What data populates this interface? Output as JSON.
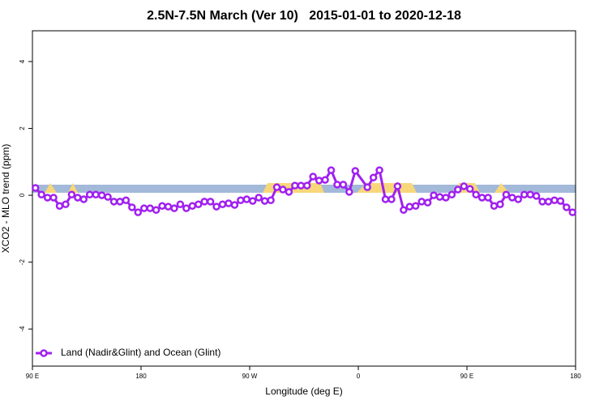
{
  "chart_data": {
    "type": "line",
    "title": "2.5N-7.5N March (Ver 10)   2015-01-01 to 2020-12-18",
    "x_label": "Longitude (deg E)",
    "y_label": "XCO2 - MLO trend (ppm)",
    "xlim": [
      90,
      540
    ],
    "xticks": [
      {
        "value": 90,
        "label": "90 E"
      },
      {
        "value": 180,
        "label": "180"
      },
      {
        "value": 270,
        "label": "90 W"
      },
      {
        "value": 360,
        "label": "0"
      },
      {
        "value": 450,
        "label": "90 E"
      },
      {
        "value": 540,
        "label": "180"
      }
    ],
    "ylim": [
      -5.11,
      4.92
    ],
    "yticks": [
      -4,
      -2,
      0,
      2,
      4
    ],
    "legend": "bottom-left",
    "series": [
      {
        "name": "Land (Nadir&Glint) and Ocean (Glint)",
        "color": "#a020f0",
        "x": [
          92.5,
          97.5,
          102.5,
          107.5,
          112.5,
          117.5,
          122.5,
          127.5,
          132.5,
          137.5,
          142.5,
          147.5,
          152.5,
          157.5,
          162.5,
          167.5,
          172.5,
          177.5,
          182.5,
          187.5,
          192.5,
          197.5,
          202.5,
          207.5,
          212.5,
          217.5,
          222.5,
          227.5,
          232.5,
          237.5,
          242.5,
          247.5,
          252.5,
          257.5,
          262.5,
          267.5,
          272.5,
          277.5,
          282.5,
          287.5,
          292.5,
          297.5,
          302.5,
          307.5,
          312.5,
          317.5,
          322.5,
          327.5,
          332.5,
          337.5,
          342.5,
          347.5,
          352.5,
          357.5,
          367.5,
          372.5,
          377.5,
          382.5,
          387.5,
          392.5,
          397.5,
          402.5,
          407.5,
          412.5,
          417.5,
          422.5,
          427.5,
          432.5,
          437.5,
          442.5,
          447.5,
          452.5,
          457.5,
          462.5,
          467.5,
          472.5,
          477.5,
          482.5,
          487.5,
          492.5,
          497.5,
          502.5,
          507.5,
          512.5,
          517.5,
          522.5,
          527.5,
          532.5,
          537.5
        ],
        "values": [
          0.22,
          0.02,
          -0.07,
          -0.07,
          -0.32,
          -0.27,
          0.02,
          -0.07,
          -0.12,
          0.02,
          0.02,
          0,
          -0.05,
          -0.19,
          -0.19,
          -0.15,
          -0.36,
          -0.51,
          -0.39,
          -0.39,
          -0.44,
          -0.32,
          -0.34,
          -0.39,
          -0.27,
          -0.39,
          -0.32,
          -0.27,
          -0.19,
          -0.19,
          -0.34,
          -0.27,
          -0.24,
          -0.29,
          -0.15,
          -0.12,
          -0.17,
          -0.07,
          -0.17,
          -0.15,
          0.24,
          0.17,
          0.1,
          0.29,
          0.29,
          0.29,
          0.56,
          0.44,
          0.46,
          0.75,
          0.32,
          0.32,
          0.1,
          0.73,
          0.24,
          0.53,
          0.75,
          -0.12,
          -0.12,
          0.27,
          -0.44,
          -0.34,
          -0.32,
          -0.19,
          -0.22,
          0,
          -0.05,
          -0.07,
          0.02,
          0.17,
          0.27,
          0.19,
          0.02,
          -0.07,
          -0.07,
          -0.32,
          -0.27,
          0.02,
          -0.07,
          -0.12,
          0.02,
          0.02,
          -0.02,
          -0.19,
          -0.19,
          -0.15,
          -0.17,
          -0.36,
          -0.51
        ]
      }
    ]
  }
}
